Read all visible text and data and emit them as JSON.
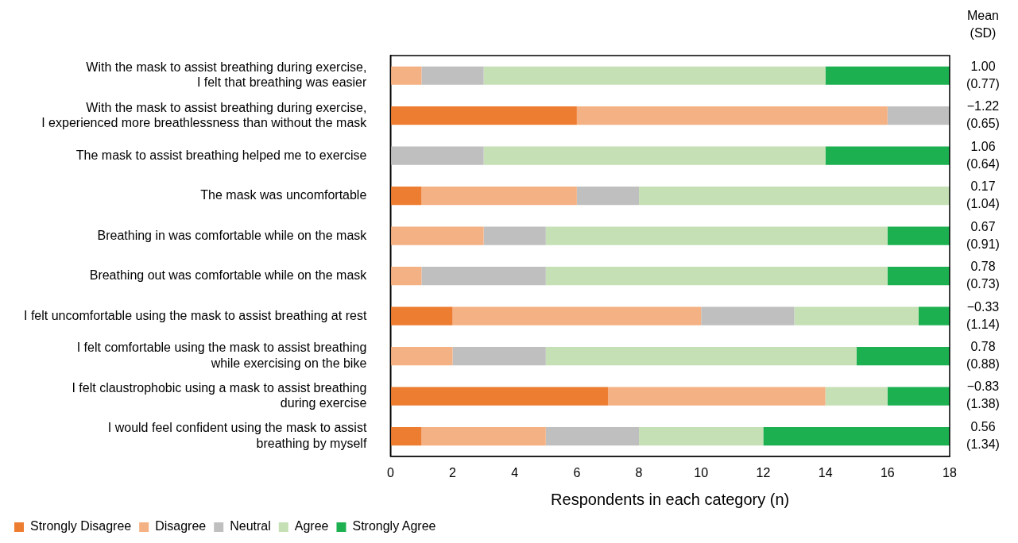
{
  "chart_data": {
    "type": "bar",
    "orientation": "horizontal",
    "stacked": true,
    "categories": [
      "With the mask to assist breathing during exercise,\nI felt that breathing was easier",
      "With the mask to assist breathing during exercise,\nI experienced more breathlessness than without the mask",
      "The mask to assist breathing helped me to exercise",
      "The mask was uncomfortable",
      "Breathing in was comfortable while on the mask",
      "Breathing out was comfortable while on the mask",
      "I felt uncomfortable using the mask to assist breathing at rest",
      "I felt comfortable using the mask to assist breathing\nwhile exercising on the bike",
      "I felt claustrophobic using a mask to assist breathing\nduring exercise",
      "I would feel confident using the mask to assist\nbreathing by myself"
    ],
    "series": [
      {
        "name": "Strongly Disagree",
        "color": "#ed7d31",
        "values": [
          0,
          6,
          0,
          1,
          0,
          0,
          2,
          0,
          7,
          1
        ]
      },
      {
        "name": "Disagree",
        "color": "#f4b183",
        "values": [
          1,
          10,
          0,
          5,
          3,
          1,
          8,
          2,
          7,
          4
        ]
      },
      {
        "name": "Neutral",
        "color": "#bfbfbf",
        "values": [
          2,
          2,
          3,
          2,
          2,
          4,
          3,
          3,
          0,
          3
        ]
      },
      {
        "name": "Agree",
        "color": "#c5e0b4",
        "values": [
          11,
          0,
          11,
          10,
          11,
          11,
          4,
          10,
          2,
          4
        ]
      },
      {
        "name": "Strongly Agree",
        "color": "#1db050",
        "values": [
          4,
          0,
          4,
          0,
          2,
          2,
          1,
          3,
          2,
          6
        ]
      }
    ],
    "xlim": [
      0,
      18
    ],
    "xticks": [
      0,
      2,
      4,
      6,
      8,
      10,
      12,
      14,
      16,
      18
    ],
    "xlabel": "Respondents in each category (n)",
    "legend": "bottom left",
    "grid": false,
    "annotations": [
      "Mean\n(SD)",
      "1.00\n(0.77)",
      "−1.22\n(0.65)",
      "1.06\n(0.64)",
      "0.17\n(1.04)",
      "0.67\n(0.91)",
      "0.78\n(0.73)",
      "−0.33\n(1.14)",
      "0.78\n(0.88)",
      "−0.83\n(1.38)",
      "0.56\n(1.34)"
    ]
  }
}
